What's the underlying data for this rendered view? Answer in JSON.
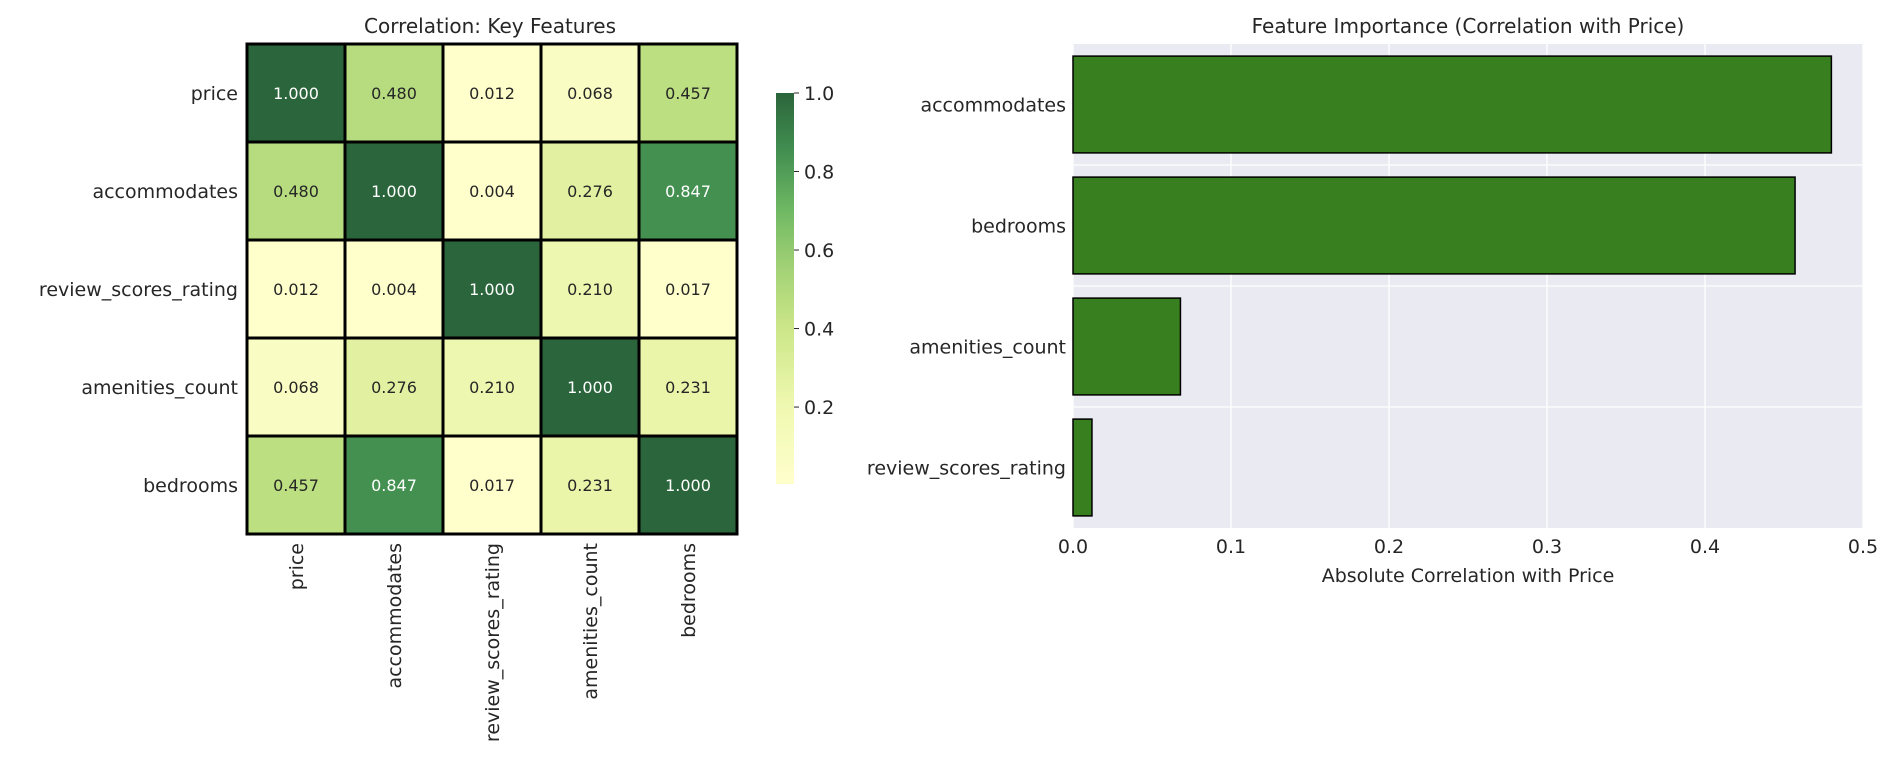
{
  "chart_data": [
    {
      "type": "heatmap",
      "title": "Correlation: Key Features",
      "rows": [
        "price",
        "accommodates",
        "review_scores_rating",
        "amenities_count",
        "bedrooms"
      ],
      "columns": [
        "price",
        "accommodates",
        "review_scores_rating",
        "amenities_count",
        "bedrooms"
      ],
      "values": [
        [
          1.0,
          0.48,
          0.012,
          0.068,
          0.457
        ],
        [
          0.48,
          1.0,
          0.004,
          0.276,
          0.847
        ],
        [
          0.012,
          0.004,
          1.0,
          0.21,
          0.017
        ],
        [
          0.068,
          0.276,
          0.21,
          1.0,
          0.231
        ],
        [
          0.457,
          0.847,
          0.017,
          0.231,
          1.0
        ]
      ],
      "annotations": [
        [
          "1.000",
          "0.480",
          "0.012",
          "0.068",
          "0.457"
        ],
        [
          "0.480",
          "1.000",
          "0.004",
          "0.276",
          "0.847"
        ],
        [
          "0.012",
          "0.004",
          "1.000",
          "0.210",
          "0.017"
        ],
        [
          "0.068",
          "0.276",
          "0.210",
          "1.000",
          "0.231"
        ],
        [
          "0.457",
          "0.847",
          "0.017",
          "0.231",
          "1.000"
        ]
      ],
      "colormap": "YlGn",
      "colorbar": {
        "ticks": [
          "0.2",
          "0.4",
          "0.6",
          "0.8",
          "1.0"
        ],
        "range": [
          0.004,
          1.0
        ]
      }
    },
    {
      "type": "bar",
      "orientation": "horizontal",
      "title": "Feature Importance (Correlation with Price)",
      "categories": [
        "accommodates",
        "bedrooms",
        "amenities_count",
        "review_scores_rating"
      ],
      "values": [
        0.48,
        0.457,
        0.068,
        0.012
      ],
      "xlabel": "Absolute Correlation with Price",
      "ylabel": "",
      "xlim": [
        0,
        0.5
      ],
      "xticks": [
        "0.0",
        "0.1",
        "0.2",
        "0.3",
        "0.4",
        "0.5"
      ],
      "bar_color": "#38801f",
      "background": "#eaeaf2",
      "grid": true
    }
  ]
}
